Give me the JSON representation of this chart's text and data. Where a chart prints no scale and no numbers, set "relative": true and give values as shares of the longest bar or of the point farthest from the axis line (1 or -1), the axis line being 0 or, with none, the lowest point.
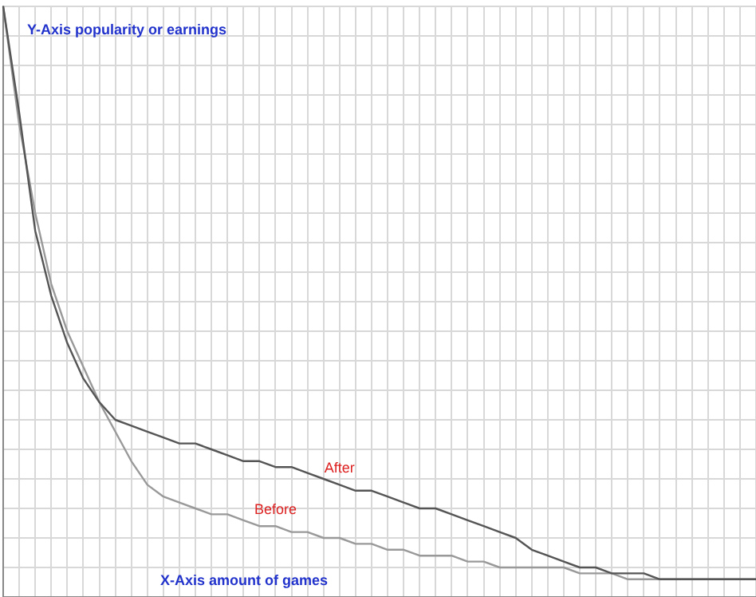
{
  "chart_data": {
    "type": "line",
    "relative": true,
    "xlabel": "X-Axis amount of games",
    "ylabel": "Y-Axis popularity or earnings",
    "grid": true,
    "legend": false,
    "marker": "none",
    "line_style": "solid",
    "categories": [
      null,
      null,
      null,
      null,
      null,
      null,
      null,
      null,
      null,
      null,
      null,
      null,
      null,
      null,
      null,
      null,
      null,
      null,
      null,
      null,
      null,
      null,
      null,
      null,
      null,
      null,
      null,
      null,
      null,
      null,
      null,
      null,
      null,
      null,
      null,
      null,
      null,
      null,
      null,
      null,
      null,
      null,
      null,
      null,
      null,
      null,
      null,
      null
    ],
    "series": [
      {
        "name": "After",
        "color": "#555555",
        "values": [
          1.0,
          0.82,
          0.62,
          0.51,
          0.43,
          0.37,
          0.33,
          0.3,
          0.29,
          0.28,
          0.27,
          0.26,
          0.26,
          0.25,
          0.24,
          0.23,
          0.23,
          0.22,
          0.22,
          0.21,
          0.2,
          0.19,
          0.18,
          0.18,
          0.17,
          0.16,
          0.15,
          0.15,
          0.14,
          0.13,
          0.12,
          0.11,
          0.1,
          0.08,
          0.07,
          0.06,
          0.05,
          0.05,
          0.04,
          0.04,
          0.04,
          0.03,
          0.03,
          0.03,
          0.03,
          0.03,
          0.03,
          0.03
        ]
      },
      {
        "name": "Before",
        "color": "#999999",
        "values": [
          1.0,
          0.8,
          0.65,
          0.53,
          0.45,
          0.39,
          0.33,
          0.28,
          0.23,
          0.19,
          0.17,
          0.16,
          0.15,
          0.14,
          0.14,
          0.13,
          0.12,
          0.12,
          0.11,
          0.11,
          0.1,
          0.1,
          0.09,
          0.09,
          0.08,
          0.08,
          0.07,
          0.07,
          0.07,
          0.06,
          0.06,
          0.05,
          0.05,
          0.05,
          0.05,
          0.05,
          0.04,
          0.04,
          0.04,
          0.03,
          0.03,
          0.03,
          0.03,
          0.03,
          0.03,
          0.03,
          0.03,
          0.03
        ]
      }
    ]
  }
}
